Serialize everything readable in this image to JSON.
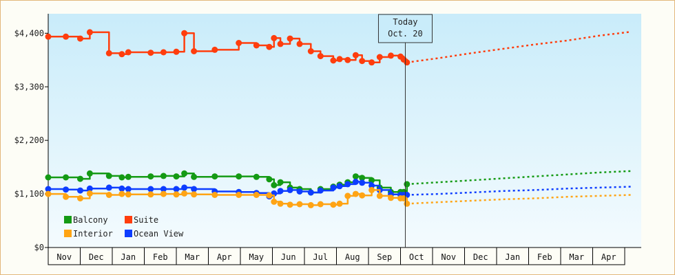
{
  "chart_data": {
    "type": "line",
    "title": "",
    "xlabel": "",
    "ylabel": "",
    "ylim": [
      0,
      4800
    ],
    "yticks": [
      0,
      1100,
      2200,
      3300,
      4400
    ],
    "ytick_labels": [
      "$0",
      "$1,100",
      "$2,200",
      "$3,300",
      "$4,400"
    ],
    "months": [
      "Nov",
      "Dec",
      "Jan",
      "Feb",
      "Mar",
      "Apr",
      "May",
      "Jun",
      "Jul",
      "Aug",
      "Sep",
      "Oct",
      "Nov",
      "Dec",
      "Jan",
      "Feb",
      "Mar",
      "Apr"
    ],
    "today_label": [
      "Today",
      "Oct. 20"
    ],
    "today_x": 11.15,
    "grid": false,
    "legend_placement": "bottom-left",
    "series": [
      {
        "name": "Suite",
        "color": "#ff3d0d",
        "values": [
          [
            0,
            4330
          ],
          [
            0.55,
            4330
          ],
          [
            1,
            4290
          ],
          [
            1.3,
            4420
          ],
          [
            1.9,
            3990
          ],
          [
            2.3,
            3970
          ],
          [
            2.5,
            4010
          ],
          [
            3.2,
            4000
          ],
          [
            3.6,
            4010
          ],
          [
            4,
            4020
          ],
          [
            4.25,
            4400
          ],
          [
            4.55,
            4030
          ],
          [
            5.2,
            4060
          ],
          [
            5.95,
            4200
          ],
          [
            6.5,
            4150
          ],
          [
            6.9,
            4120
          ],
          [
            7.05,
            4300
          ],
          [
            7.25,
            4180
          ],
          [
            7.55,
            4290
          ],
          [
            7.85,
            4180
          ],
          [
            8.2,
            4030
          ],
          [
            8.5,
            3930
          ],
          [
            8.9,
            3840
          ],
          [
            9.1,
            3870
          ],
          [
            9.35,
            3850
          ],
          [
            9.6,
            3950
          ],
          [
            9.8,
            3830
          ],
          [
            10.1,
            3800
          ],
          [
            10.35,
            3910
          ],
          [
            10.7,
            3940
          ],
          [
            11,
            3920
          ],
          [
            11.1,
            3860
          ],
          [
            11.2,
            3800
          ]
        ],
        "forecast": [
          [
            11.2,
            3800
          ],
          [
            12.2,
            3890
          ],
          [
            13.2,
            3990
          ],
          [
            14.2,
            4080
          ],
          [
            15.2,
            4170
          ],
          [
            16.2,
            4250
          ],
          [
            17.2,
            4350
          ],
          [
            18.2,
            4430
          ]
        ]
      },
      {
        "name": "Balcony",
        "color": "#149a14",
        "values": [
          [
            0,
            1440
          ],
          [
            0.55,
            1440
          ],
          [
            1,
            1410
          ],
          [
            1.3,
            1520
          ],
          [
            1.9,
            1470
          ],
          [
            2.3,
            1440
          ],
          [
            2.5,
            1450
          ],
          [
            3.2,
            1460
          ],
          [
            3.6,
            1470
          ],
          [
            4,
            1460
          ],
          [
            4.25,
            1520
          ],
          [
            4.55,
            1450
          ],
          [
            5.2,
            1460
          ],
          [
            5.95,
            1460
          ],
          [
            6.5,
            1450
          ],
          [
            6.9,
            1400
          ],
          [
            7.05,
            1280
          ],
          [
            7.25,
            1340
          ],
          [
            7.55,
            1230
          ],
          [
            7.85,
            1200
          ],
          [
            8.2,
            1130
          ],
          [
            8.5,
            1200
          ],
          [
            8.9,
            1250
          ],
          [
            9.1,
            1290
          ],
          [
            9.35,
            1340
          ],
          [
            9.6,
            1460
          ],
          [
            9.8,
            1430
          ],
          [
            10.1,
            1380
          ],
          [
            10.35,
            1230
          ],
          [
            10.7,
            1140
          ],
          [
            11,
            1140
          ],
          [
            11.1,
            1140
          ],
          [
            11.2,
            1300
          ]
        ],
        "forecast": [
          [
            11.2,
            1300
          ],
          [
            12.2,
            1340
          ],
          [
            13.2,
            1380
          ],
          [
            14.2,
            1420
          ],
          [
            15.2,
            1460
          ],
          [
            16.2,
            1500
          ],
          [
            17.2,
            1540
          ],
          [
            18.2,
            1570
          ]
        ]
      },
      {
        "name": "Ocean View",
        "color": "#0d3dff",
        "values": [
          [
            0,
            1200
          ],
          [
            0.55,
            1190
          ],
          [
            1,
            1170
          ],
          [
            1.3,
            1210
          ],
          [
            1.9,
            1230
          ],
          [
            2.3,
            1210
          ],
          [
            2.5,
            1200
          ],
          [
            3.2,
            1200
          ],
          [
            3.6,
            1200
          ],
          [
            4,
            1200
          ],
          [
            4.25,
            1230
          ],
          [
            4.55,
            1200
          ],
          [
            5.2,
            1150
          ],
          [
            5.95,
            1140
          ],
          [
            6.5,
            1120
          ],
          [
            6.9,
            1050
          ],
          [
            7.05,
            1110
          ],
          [
            7.25,
            1160
          ],
          [
            7.55,
            1180
          ],
          [
            7.85,
            1150
          ],
          [
            8.2,
            1130
          ],
          [
            8.5,
            1170
          ],
          [
            8.9,
            1230
          ],
          [
            9.1,
            1260
          ],
          [
            9.35,
            1300
          ],
          [
            9.6,
            1350
          ],
          [
            9.8,
            1330
          ],
          [
            10.1,
            1270
          ],
          [
            10.35,
            1180
          ],
          [
            10.7,
            1090
          ],
          [
            11,
            1080
          ],
          [
            11.1,
            1080
          ],
          [
            11.2,
            1080
          ]
        ],
        "forecast": [
          [
            11.2,
            1080
          ],
          [
            12.2,
            1100
          ],
          [
            13.2,
            1130
          ],
          [
            14.2,
            1160
          ],
          [
            15.2,
            1180
          ],
          [
            16.2,
            1210
          ],
          [
            17.2,
            1230
          ],
          [
            18.2,
            1250
          ]
        ]
      },
      {
        "name": "Interior",
        "color": "#ffa414",
        "values": [
          [
            0,
            1100
          ],
          [
            0.55,
            1040
          ],
          [
            1,
            1010
          ],
          [
            1.3,
            1110
          ],
          [
            1.9,
            1080
          ],
          [
            2.3,
            1100
          ],
          [
            2.5,
            1090
          ],
          [
            3.2,
            1090
          ],
          [
            3.6,
            1100
          ],
          [
            4,
            1090
          ],
          [
            4.25,
            1110
          ],
          [
            4.55,
            1090
          ],
          [
            5.2,
            1080
          ],
          [
            5.95,
            1080
          ],
          [
            6.5,
            1080
          ],
          [
            6.9,
            1070
          ],
          [
            7.05,
            940
          ],
          [
            7.25,
            900
          ],
          [
            7.55,
            880
          ],
          [
            7.85,
            890
          ],
          [
            8.2,
            870
          ],
          [
            8.5,
            890
          ],
          [
            8.9,
            880
          ],
          [
            9.1,
            900
          ],
          [
            9.35,
            1060
          ],
          [
            9.6,
            1100
          ],
          [
            9.8,
            1070
          ],
          [
            10.1,
            1180
          ],
          [
            10.35,
            1060
          ],
          [
            10.7,
            1020
          ],
          [
            11,
            1010
          ],
          [
            11.1,
            1010
          ],
          [
            11.2,
            900
          ]
        ],
        "forecast": [
          [
            11.2,
            900
          ],
          [
            12.2,
            930
          ],
          [
            13.2,
            960
          ],
          [
            14.2,
            990
          ],
          [
            15.2,
            1010
          ],
          [
            16.2,
            1040
          ],
          [
            17.2,
            1060
          ],
          [
            18.2,
            1080
          ]
        ]
      }
    ],
    "legend": [
      {
        "name": "Balcony",
        "color": "#149a14"
      },
      {
        "name": "Suite",
        "color": "#ff3d0d"
      },
      {
        "name": "Interior",
        "color": "#ffa414"
      },
      {
        "name": "Ocean View",
        "color": "#0d3dff"
      }
    ]
  }
}
